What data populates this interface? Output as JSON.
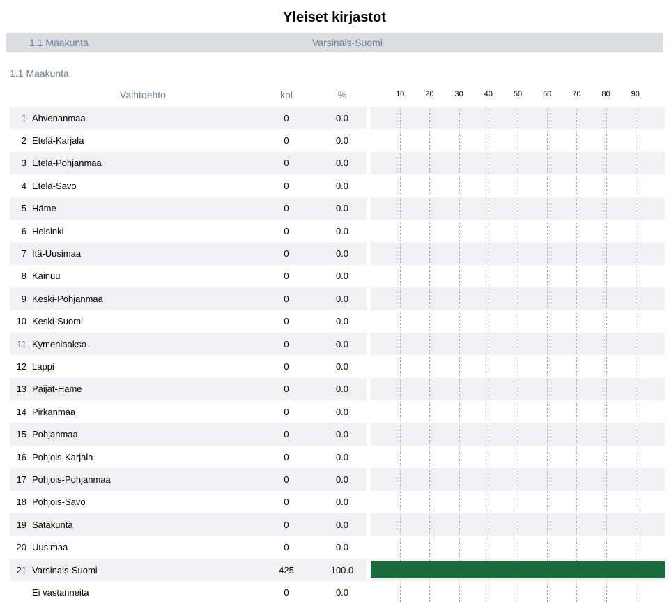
{
  "page_title": "Yleiset kirjastot",
  "header": {
    "label": "1.1 Maakunta",
    "value": "Varsinais-Suomi"
  },
  "section_label": "1.1 Maakunta",
  "columns": {
    "option": "Vaihtoehto",
    "count": "kpl",
    "percent": "%"
  },
  "rows": [
    {
      "n": "1",
      "label": "Ahvenanmaa",
      "kpl": "0",
      "pct": "0.0",
      "bar": 0
    },
    {
      "n": "2",
      "label": "Etelä-Karjala",
      "kpl": "0",
      "pct": "0.0",
      "bar": 0
    },
    {
      "n": "3",
      "label": "Etelä-Pohjanmaa",
      "kpl": "0",
      "pct": "0.0",
      "bar": 0
    },
    {
      "n": "4",
      "label": "Etelä-Savo",
      "kpl": "0",
      "pct": "0.0",
      "bar": 0
    },
    {
      "n": "5",
      "label": "Häme",
      "kpl": "0",
      "pct": "0.0",
      "bar": 0
    },
    {
      "n": "6",
      "label": "Helsinki",
      "kpl": "0",
      "pct": "0.0",
      "bar": 0
    },
    {
      "n": "7",
      "label": "Itä-Uusimaa",
      "kpl": "0",
      "pct": "0.0",
      "bar": 0
    },
    {
      "n": "8",
      "label": "Kainuu",
      "kpl": "0",
      "pct": "0.0",
      "bar": 0
    },
    {
      "n": "9",
      "label": "Keski-Pohjanmaa",
      "kpl": "0",
      "pct": "0.0",
      "bar": 0
    },
    {
      "n": "10",
      "label": "Keski-Suomi",
      "kpl": "0",
      "pct": "0.0",
      "bar": 0
    },
    {
      "n": "11",
      "label": "Kymenlaakso",
      "kpl": "0",
      "pct": "0.0",
      "bar": 0
    },
    {
      "n": "12",
      "label": "Lappi",
      "kpl": "0",
      "pct": "0.0",
      "bar": 0
    },
    {
      "n": "13",
      "label": "Päijät-Häme",
      "kpl": "0",
      "pct": "0.0",
      "bar": 0
    },
    {
      "n": "14",
      "label": "Pirkanmaa",
      "kpl": "0",
      "pct": "0.0",
      "bar": 0
    },
    {
      "n": "15",
      "label": "Pohjanmaa",
      "kpl": "0",
      "pct": "0.0",
      "bar": 0
    },
    {
      "n": "16",
      "label": "Pohjois-Karjala",
      "kpl": "0",
      "pct": "0.0",
      "bar": 0
    },
    {
      "n": "17",
      "label": "Pohjois-Pohjanmaa",
      "kpl": "0",
      "pct": "0.0",
      "bar": 0
    },
    {
      "n": "18",
      "label": "Pohjois-Savo",
      "kpl": "0",
      "pct": "0.0",
      "bar": 0
    },
    {
      "n": "19",
      "label": "Satakunta",
      "kpl": "0",
      "pct": "0.0",
      "bar": 0
    },
    {
      "n": "20",
      "label": "Uusimaa",
      "kpl": "0",
      "pct": "0.0",
      "bar": 0
    },
    {
      "n": "21",
      "label": "Varsinais-Suomi",
      "kpl": "425",
      "pct": "100.0",
      "bar": 100
    },
    {
      "n": "",
      "label": "Ei vastanneita",
      "kpl": "0",
      "pct": "0.0",
      "bar": 0
    }
  ],
  "chart": {
    "ticks": [
      10,
      20,
      30,
      40,
      50,
      60,
      70,
      80,
      90
    ],
    "xmax": 100,
    "bar_color": "#1a6b3e",
    "grid_color": "#99aabb",
    "row_bg_even": "#f1f1f3",
    "row_bg_odd": "#ffffff"
  }
}
